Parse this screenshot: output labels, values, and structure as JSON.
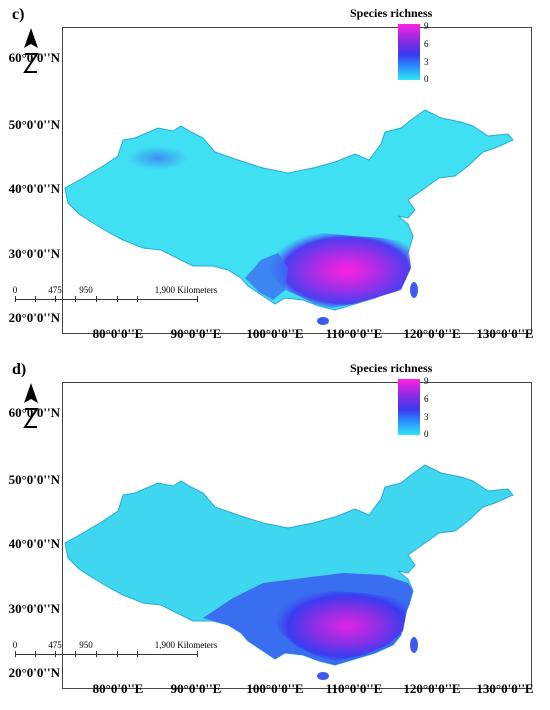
{
  "panels": [
    {
      "label": "c)",
      "legend": {
        "title": "Species richness",
        "ticks": [
          "9",
          "6",
          "3",
          "0"
        ]
      },
      "lat_labels": [
        "60°0'0''N",
        "50°0'0''N",
        "40°0'0''N",
        "30°0'0''N",
        "20°0'0''N"
      ],
      "lon_labels": [
        "80°0'0''E",
        "90°0'0''E",
        "100°0'0''E",
        "110°0'0''E",
        "120°0'0''E",
        "130°0'0''E"
      ],
      "scale": {
        "ticks": [
          "0",
          "475",
          "950",
          "1,900 Kilometers"
        ]
      }
    },
    {
      "label": "d)",
      "legend": {
        "title": "Species richness",
        "ticks": [
          "9",
          "6",
          "3",
          "0"
        ]
      },
      "lat_labels": [
        "60°0'0''N",
        "50°0'0''N",
        "40°0'0''N",
        "30°0'0''N",
        "20°0'0''N"
      ],
      "lon_labels": [
        "80°0'0''E",
        "90°0'0''E",
        "100°0'0''E",
        "110°0'0''E",
        "120°0'0''E",
        "130°0'0''E"
      ],
      "scale": {
        "ticks": [
          "0",
          "475",
          "950",
          "1,900 Kilometers"
        ]
      }
    }
  ],
  "colors": {
    "low": "#30e6f6",
    "mid": "#3a3af0",
    "high": "#ff20e0"
  }
}
